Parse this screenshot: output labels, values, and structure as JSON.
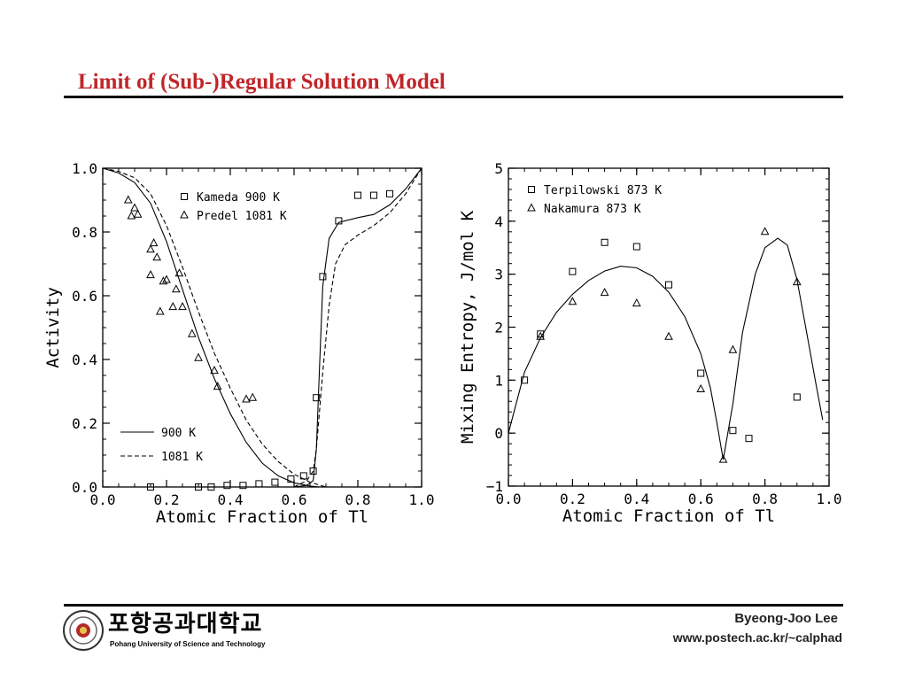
{
  "slide": {
    "title": "Limit of (Sub-)Regular Solution Model",
    "author": "Byeong-Joo Lee",
    "url": "www.postech.ac.kr/~calphad",
    "university_ko": "포항공과대학교",
    "university_en": "Pohang University of Science and Technology"
  },
  "chart_data": [
    {
      "type": "scatter",
      "xlabel": "Atomic Fraction of Tl",
      "ylabel": "Activity",
      "xlim": [
        0.0,
        1.0
      ],
      "ylim": [
        0.0,
        1.0
      ],
      "xticks": [
        "0.0",
        "0.2",
        "0.4",
        "0.6",
        "0.8",
        "1.0"
      ],
      "yticks": [
        "0.0",
        "0.2",
        "0.4",
        "0.6",
        "0.8",
        "1.0"
      ],
      "legend_markers": [
        "Kameda 900 K",
        "Predel 1081 K"
      ],
      "legend_lines": [
        "900 K",
        "1081 K"
      ],
      "series": [
        {
          "name": "Kameda 900 K",
          "marker": "square",
          "points": [
            [
              0.15,
              0.0
            ],
            [
              0.3,
              0.0
            ],
            [
              0.34,
              0.0
            ],
            [
              0.39,
              0.005
            ],
            [
              0.44,
              0.005
            ],
            [
              0.49,
              0.01
            ],
            [
              0.54,
              0.015
            ],
            [
              0.59,
              0.025
            ],
            [
              0.63,
              0.035
            ],
            [
              0.66,
              0.05
            ],
            [
              0.67,
              0.28
            ],
            [
              0.69,
              0.66
            ],
            [
              0.74,
              0.835
            ],
            [
              0.8,
              0.915
            ],
            [
              0.85,
              0.915
            ],
            [
              0.9,
              0.92
            ]
          ]
        },
        {
          "name": "Predel 1081 K",
          "marker": "triangle",
          "points": [
            [
              0.08,
              0.9
            ],
            [
              0.09,
              0.85
            ],
            [
              0.1,
              0.875
            ],
            [
              0.11,
              0.855
            ],
            [
              0.15,
              0.745
            ],
            [
              0.16,
              0.765
            ],
            [
              0.17,
              0.72
            ],
            [
              0.15,
              0.665
            ],
            [
              0.18,
              0.55
            ],
            [
              0.19,
              0.645
            ],
            [
              0.2,
              0.65
            ],
            [
              0.22,
              0.565
            ],
            [
              0.23,
              0.62
            ],
            [
              0.24,
              0.67
            ],
            [
              0.25,
              0.565
            ],
            [
              0.28,
              0.48
            ],
            [
              0.3,
              0.405
            ],
            [
              0.35,
              0.365
            ],
            [
              0.36,
              0.315
            ],
            [
              0.45,
              0.275
            ],
            [
              0.47,
              0.28
            ]
          ]
        },
        {
          "name": "900 K",
          "style": "solid",
          "points": [
            [
              0.0,
              1.0
            ],
            [
              0.05,
              0.985
            ],
            [
              0.1,
              0.955
            ],
            [
              0.15,
              0.89
            ],
            [
              0.2,
              0.77
            ],
            [
              0.25,
              0.62
            ],
            [
              0.3,
              0.47
            ],
            [
              0.35,
              0.34
            ],
            [
              0.4,
              0.23
            ],
            [
              0.45,
              0.14
            ],
            [
              0.5,
              0.075
            ],
            [
              0.55,
              0.035
            ],
            [
              0.6,
              0.013
            ],
            [
              0.65,
              0.003
            ],
            [
              0.68,
              0.0
            ]
          ]
        },
        {
          "name": "1081 K",
          "style": "dashed",
          "points": [
            [
              0.0,
              1.0
            ],
            [
              0.05,
              0.99
            ],
            [
              0.1,
              0.97
            ],
            [
              0.15,
              0.92
            ],
            [
              0.2,
              0.82
            ],
            [
              0.25,
              0.69
            ],
            [
              0.3,
              0.55
            ],
            [
              0.35,
              0.42
            ],
            [
              0.4,
              0.31
            ],
            [
              0.45,
              0.21
            ],
            [
              0.5,
              0.135
            ],
            [
              0.55,
              0.08
            ],
            [
              0.6,
              0.04
            ],
            [
              0.65,
              0.015
            ],
            [
              0.7,
              0.0
            ]
          ]
        },
        {
          "name": "900 K Tl",
          "style": "solid",
          "points": [
            [
              0.6,
              0.0
            ],
            [
              0.64,
              0.005
            ],
            [
              0.66,
              0.02
            ],
            [
              0.67,
              0.12
            ],
            [
              0.68,
              0.38
            ],
            [
              0.69,
              0.63
            ],
            [
              0.71,
              0.78
            ],
            [
              0.74,
              0.83
            ],
            [
              0.8,
              0.845
            ],
            [
              0.85,
              0.855
            ],
            [
              0.9,
              0.885
            ],
            [
              0.95,
              0.935
            ],
            [
              1.0,
              1.0
            ]
          ]
        },
        {
          "name": "1081 K Tl",
          "style": "dashed",
          "points": [
            [
              0.6,
              0.0
            ],
            [
              0.64,
              0.02
            ],
            [
              0.66,
              0.05
            ],
            [
              0.67,
              0.12
            ],
            [
              0.69,
              0.36
            ],
            [
              0.71,
              0.57
            ],
            [
              0.73,
              0.7
            ],
            [
              0.76,
              0.76
            ],
            [
              0.8,
              0.79
            ],
            [
              0.85,
              0.82
            ],
            [
              0.9,
              0.86
            ],
            [
              0.95,
              0.92
            ],
            [
              1.0,
              1.0
            ]
          ]
        }
      ]
    },
    {
      "type": "scatter",
      "xlabel": "Atomic Fraction of Tl",
      "ylabel": "Mixing Entropy, J/mol K",
      "xlim": [
        0.0,
        1.0
      ],
      "ylim": [
        -1,
        5
      ],
      "xticks": [
        "0.0",
        "0.2",
        "0.4",
        "0.6",
        "0.8",
        "1.0"
      ],
      "yticks": [
        "−1",
        "0",
        "1",
        "2",
        "3",
        "4",
        "5"
      ],
      "legend_markers": [
        "Terpilowski 873 K",
        "Nakamura 873 K"
      ],
      "series": [
        {
          "name": "Terpilowski 873 K",
          "marker": "square",
          "points": [
            [
              0.05,
              1.0
            ],
            [
              0.1,
              1.87
            ],
            [
              0.2,
              3.05
            ],
            [
              0.3,
              3.6
            ],
            [
              0.4,
              3.52
            ],
            [
              0.5,
              2.8
            ],
            [
              0.6,
              1.13
            ],
            [
              0.7,
              0.05
            ],
            [
              0.75,
              -0.1
            ],
            [
              0.9,
              0.68
            ]
          ]
        },
        {
          "name": "Nakamura 873 K",
          "marker": "triangle",
          "points": [
            [
              0.1,
              1.82
            ],
            [
              0.2,
              2.48
            ],
            [
              0.3,
              2.65
            ],
            [
              0.4,
              2.45
            ],
            [
              0.5,
              1.82
            ],
            [
              0.6,
              0.83
            ],
            [
              0.67,
              -0.5
            ],
            [
              0.7,
              1.57
            ],
            [
              0.8,
              3.8
            ],
            [
              0.9,
              2.85
            ]
          ]
        },
        {
          "name": "curve",
          "style": "solid",
          "points": [
            [
              0.0,
              0.0
            ],
            [
              0.05,
              1.15
            ],
            [
              0.1,
              1.8
            ],
            [
              0.15,
              2.28
            ],
            [
              0.2,
              2.62
            ],
            [
              0.25,
              2.88
            ],
            [
              0.3,
              3.06
            ],
            [
              0.35,
              3.15
            ],
            [
              0.4,
              3.12
            ],
            [
              0.45,
              2.96
            ],
            [
              0.5,
              2.66
            ],
            [
              0.55,
              2.2
            ],
            [
              0.6,
              1.5
            ],
            [
              0.63,
              0.85
            ],
            [
              0.65,
              0.2
            ],
            [
              0.67,
              -0.5
            ],
            [
              0.7,
              0.55
            ],
            [
              0.73,
              1.9
            ],
            [
              0.77,
              3.0
            ],
            [
              0.8,
              3.5
            ],
            [
              0.84,
              3.68
            ],
            [
              0.87,
              3.55
            ],
            [
              0.9,
              2.9
            ],
            [
              0.93,
              1.9
            ],
            [
              0.96,
              0.9
            ],
            [
              0.98,
              0.25
            ]
          ]
        }
      ]
    }
  ]
}
